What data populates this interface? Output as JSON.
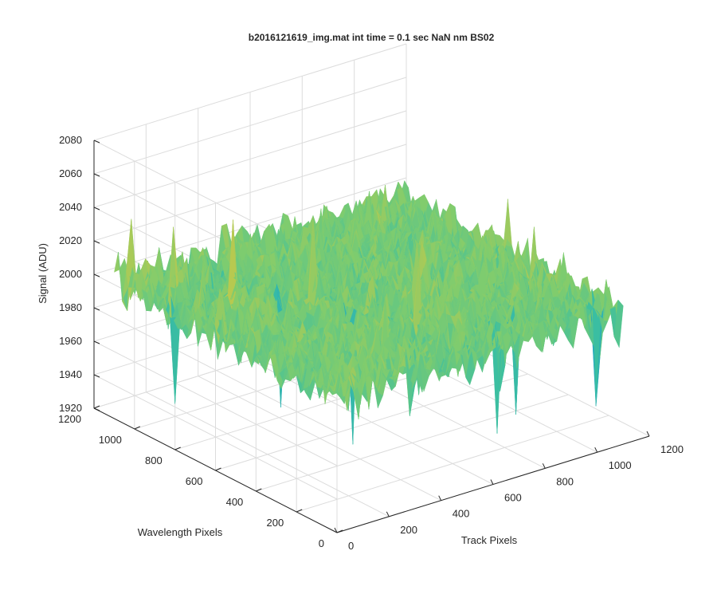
{
  "chart_data": {
    "type": "surface",
    "title": "b2016121619_img.mat int time = 0.1 sec  NaN nm BS02",
    "xlabel": "Track Pixels",
    "ylabel": "Wavelength Pixels",
    "zlabel": "Signal (ADU)",
    "xlim": [
      0,
      1200
    ],
    "ylim": [
      0,
      1200
    ],
    "zlim": [
      1920,
      2080
    ],
    "xticks": [
      "0",
      "200",
      "400",
      "600",
      "800",
      "1000",
      "1200"
    ],
    "yticks": [
      "0",
      "200",
      "400",
      "600",
      "800",
      "1000",
      "1200"
    ],
    "zticks": [
      "1920",
      "1940",
      "1960",
      "1980",
      "2000",
      "2020",
      "2040",
      "2060",
      "2080"
    ],
    "grid": true,
    "colormap": [
      "#0072bd",
      "#1ea4c8",
      "#3cbfa0",
      "#7fcc6e",
      "#c3c84a",
      "#e7c238"
    ],
    "surface": {
      "x_extent": [
        0,
        1100
      ],
      "y_extent": [
        0,
        1100
      ],
      "mean_signal": 2000,
      "spikes": [
        {
          "x": 10,
          "y": 1050,
          "z": 2042
        },
        {
          "x": 60,
          "y": 880,
          "z": 2045
        },
        {
          "x": 200,
          "y": 760,
          "z": 2050
        },
        {
          "x": 420,
          "y": 640,
          "z": 2048
        },
        {
          "x": 700,
          "y": 500,
          "z": 2030
        },
        {
          "x": 1000,
          "y": 320,
          "z": 2035
        },
        {
          "x": 520,
          "y": 260,
          "z": 2038
        }
      ],
      "dips": [
        {
          "x": 20,
          "y": 820,
          "z": 1945
        },
        {
          "x": 330,
          "y": 700,
          "z": 1935
        },
        {
          "x": 420,
          "y": 460,
          "z": 1925
        },
        {
          "x": 700,
          "y": 120,
          "z": 1938
        },
        {
          "x": 830,
          "y": 180,
          "z": 1940
        },
        {
          "x": 1050,
          "y": 60,
          "z": 1942
        }
      ]
    }
  }
}
